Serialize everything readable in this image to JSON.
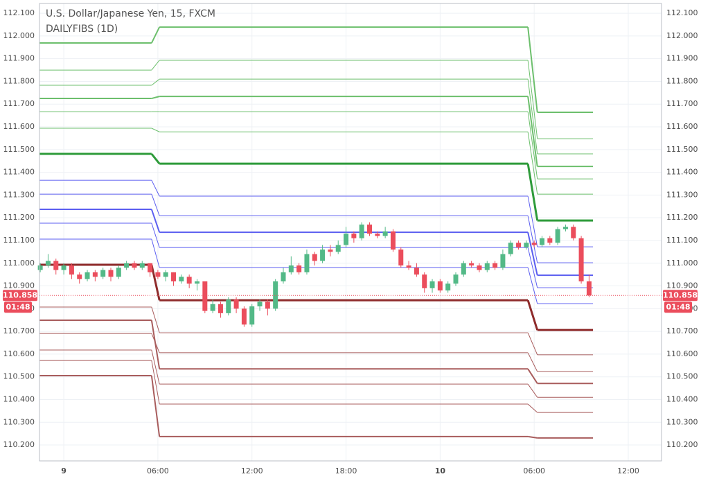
{
  "chart_data": {
    "type": "candlestick",
    "title": "U.S. Dollar/Japanese Yen, 15, FXCM",
    "subtitle": "DAILYFIBS (1D)",
    "x": [
      -1.5,
      -1.0,
      -0.5,
      0.0,
      0.5,
      1.0,
      1.5,
      2.0,
      2.5,
      3.0,
      3.5,
      4.0,
      4.5,
      5.0,
      5.5,
      6.0,
      6.5,
      7.0,
      7.5,
      8.0,
      8.5,
      9.0,
      9.5,
      10.0,
      10.5,
      11.0,
      11.5,
      12.0,
      12.5,
      13.0,
      13.5,
      14.0,
      14.5,
      15.0,
      15.5,
      16.0,
      16.5,
      17.0,
      17.5,
      18.0,
      18.5,
      19.0,
      19.5,
      20.0,
      20.5,
      21.0,
      21.5,
      22.0,
      22.5,
      23.0,
      23.5,
      24.0,
      24.5,
      25.0,
      25.5,
      26.0,
      26.5,
      27.0,
      27.5,
      28.0,
      28.5,
      29.0,
      29.5,
      30.0,
      30.5,
      31.0,
      31.5,
      32.0,
      32.5,
      33.0,
      33.5
    ],
    "open": [
      110.97,
      110.99,
      111.01,
      110.97,
      110.99,
      110.95,
      110.93,
      110.96,
      110.94,
      110.97,
      110.94,
      110.98,
      111.0,
      110.98,
      111.0,
      110.96,
      110.94,
      110.96,
      110.92,
      110.94,
      110.91,
      110.92,
      110.79,
      110.82,
      110.78,
      110.84,
      110.8,
      110.73,
      110.81,
      110.83,
      110.8,
      110.92,
      110.96,
      110.99,
      110.96,
      111.04,
      111.01,
      111.06,
      111.05,
      111.08,
      111.13,
      111.11,
      111.17,
      111.13,
      111.12,
      111.14,
      111.06,
      110.99,
      110.98,
      110.95,
      110.89,
      110.92,
      110.88,
      110.91,
      110.95,
      111.0,
      110.99,
      110.97,
      111.0,
      110.98,
      111.04,
      111.09,
      111.07,
      111.09,
      111.08,
      111.11,
      111.09,
      111.15,
      111.16,
      111.11,
      110.92
    ],
    "high": [
      111.0,
      111.04,
      111.02,
      111.0,
      111.0,
      110.96,
      110.97,
      110.97,
      110.98,
      110.98,
      110.99,
      111.01,
      111.01,
      111.01,
      111.0,
      110.97,
      110.97,
      110.96,
      110.95,
      110.95,
      110.93,
      110.92,
      110.84,
      110.83,
      110.85,
      110.85,
      110.81,
      110.82,
      110.84,
      110.84,
      110.93,
      110.98,
      111.03,
      111.0,
      111.06,
      111.05,
      111.08,
      111.08,
      111.1,
      111.16,
      111.14,
      111.18,
      111.18,
      111.14,
      111.16,
      111.15,
      111.07,
      111.01,
      111.0,
      110.96,
      110.93,
      110.93,
      110.92,
      110.96,
      111.01,
      111.01,
      111.0,
      111.01,
      111.01,
      111.06,
      111.1,
      111.1,
      111.1,
      111.1,
      111.12,
      111.12,
      111.16,
      111.17,
      111.17,
      111.12,
      110.95
    ],
    "low": [
      110.96,
      110.98,
      110.95,
      110.95,
      110.93,
      110.91,
      110.92,
      110.92,
      110.93,
      110.92,
      110.93,
      110.97,
      110.97,
      110.97,
      110.94,
      110.93,
      110.92,
      110.9,
      110.91,
      110.89,
      110.88,
      110.78,
      110.78,
      110.76,
      110.77,
      110.78,
      110.72,
      110.72,
      110.79,
      110.77,
      110.79,
      110.91,
      110.95,
      110.95,
      110.95,
      110.99,
      111.0,
      111.03,
      111.04,
      111.07,
      111.09,
      111.1,
      111.12,
      111.11,
      111.11,
      111.05,
      110.98,
      110.97,
      110.94,
      110.87,
      110.87,
      110.87,
      110.87,
      110.9,
      110.94,
      110.98,
      110.96,
      110.96,
      110.97,
      110.97,
      111.03,
      111.06,
      111.06,
      111.07,
      111.07,
      111.08,
      111.08,
      111.14,
      111.1,
      110.91,
      110.85
    ],
    "close": [
      110.99,
      111.01,
      110.97,
      110.99,
      110.95,
      110.93,
      110.96,
      110.94,
      110.97,
      110.94,
      110.98,
      111.0,
      110.98,
      111.0,
      110.96,
      110.94,
      110.96,
      110.92,
      110.94,
      110.91,
      110.92,
      110.79,
      110.82,
      110.78,
      110.84,
      110.8,
      110.73,
      110.81,
      110.83,
      110.8,
      110.92,
      110.96,
      110.99,
      110.96,
      111.04,
      111.01,
      111.06,
      111.05,
      111.08,
      111.13,
      111.11,
      111.17,
      111.13,
      111.12,
      111.14,
      111.06,
      110.99,
      110.98,
      110.95,
      110.89,
      110.92,
      110.88,
      110.91,
      110.95,
      111.0,
      110.99,
      110.97,
      111.0,
      110.98,
      111.04,
      111.09,
      111.07,
      111.09,
      111.08,
      111.11,
      111.09,
      111.15,
      111.16,
      111.11,
      110.92,
      110.858
    ],
    "up_color": "#53b987",
    "down_color": "#eb4d5c",
    "last_price": 110.858,
    "countdown": "01:48",
    "fib_segments": [
      [
        -1.55,
        5.6
      ],
      [
        6.1,
        29.6
      ],
      [
        30.2,
        33.75
      ]
    ],
    "fib_lines": [
      {
        "color": "#6cbf6c",
        "width": 2,
        "levels": [
          111.969,
          112.039,
          111.664
        ]
      },
      {
        "color": "#6cbf6c",
        "width": 1,
        "levels": [
          111.85,
          111.893,
          111.548
        ]
      },
      {
        "color": "#6cbf6c",
        "width": 1,
        "levels": [
          111.783,
          111.81,
          111.481
        ]
      },
      {
        "color": "#6cbf6c",
        "width": 2,
        "levels": [
          111.725,
          111.734,
          111.426
        ]
      },
      {
        "color": "#6cbf6c",
        "width": 1,
        "levels": [
          111.667,
          111.667,
          111.371
        ]
      },
      {
        "color": "#6cbf6c",
        "width": 1,
        "levels": [
          111.594,
          111.578,
          111.304
        ]
      },
      {
        "color": "#2e9b3a",
        "width": 3,
        "levels": [
          111.481,
          111.438,
          111.188
        ]
      },
      {
        "color": "#5b5ef0",
        "width": 1,
        "levels": [
          111.365,
          111.295,
          111.072
        ]
      },
      {
        "color": "#5b5ef0",
        "width": 1,
        "levels": [
          111.304,
          111.209,
          111.002
        ]
      },
      {
        "color": "#5b5ef0",
        "width": 2,
        "levels": [
          111.237,
          111.136,
          110.947
        ]
      },
      {
        "color": "#5b5ef0",
        "width": 1,
        "levels": [
          111.176,
          111.069,
          110.892
        ]
      },
      {
        "color": "#5b5ef0",
        "width": 1,
        "levels": [
          111.106,
          110.981,
          110.822
        ]
      },
      {
        "color": "#8e2a2a",
        "width": 3,
        "levels": [
          110.993,
          110.837,
          110.706
        ]
      },
      {
        "color": "#a85c5c",
        "width": 1,
        "levels": [
          110.807,
          110.694,
          110.597
        ]
      },
      {
        "color": "#a85c5c",
        "width": 2,
        "levels": [
          110.749,
          110.535,
          110.471
        ]
      },
      {
        "color": "#a85c5c",
        "width": 1,
        "levels": [
          110.691,
          110.606,
          110.523
        ]
      },
      {
        "color": "#a85c5c",
        "width": 1,
        "levels": [
          110.618,
          110.468,
          110.41
        ]
      },
      {
        "color": "#a85c5c",
        "width": 1,
        "levels": [
          110.572,
          110.38,
          110.343
        ]
      },
      {
        "color": "#a85c5c",
        "width": 2,
        "levels": [
          110.505,
          110.237,
          110.231
        ]
      }
    ],
    "xlim": [
      -1.55,
      38.12
    ],
    "xticks": [
      {
        "value": 0,
        "label": "9"
      },
      {
        "value": 6,
        "label": "06:00"
      },
      {
        "value": 12,
        "label": "12:00"
      },
      {
        "value": 18,
        "label": "18:00"
      },
      {
        "value": 24,
        "label": "10"
      },
      {
        "value": 30,
        "label": "06:00"
      },
      {
        "value": 36,
        "label": "12:00"
      }
    ],
    "ylim": [
      110.13,
      112.143
    ],
    "yticks": [
      {
        "value": 110.2,
        "label": "110.200"
      },
      {
        "value": 110.3,
        "label": "110.300"
      },
      {
        "value": 110.4,
        "label": "110.400"
      },
      {
        "value": 110.5,
        "label": "110.500"
      },
      {
        "value": 110.6,
        "label": "110.600"
      },
      {
        "value": 110.7,
        "label": "110.700"
      },
      {
        "value": 110.8,
        "label": "110.800"
      },
      {
        "value": 110.9,
        "label": "110.900"
      },
      {
        "value": 111.0,
        "label": "111.000"
      },
      {
        "value": 111.1,
        "label": "111.100"
      },
      {
        "value": 111.2,
        "label": "111.200"
      },
      {
        "value": 111.3,
        "label": "111.300"
      },
      {
        "value": 111.4,
        "label": "111.400"
      },
      {
        "value": 111.5,
        "label": "111.500"
      },
      {
        "value": 111.6,
        "label": "111.600"
      },
      {
        "value": 111.7,
        "label": "111.700"
      },
      {
        "value": 111.8,
        "label": "111.800"
      },
      {
        "value": 111.9,
        "label": "111.900"
      },
      {
        "value": 112.0,
        "label": "112.000"
      },
      {
        "value": 112.1,
        "label": "112.100"
      }
    ],
    "grid": true
  }
}
